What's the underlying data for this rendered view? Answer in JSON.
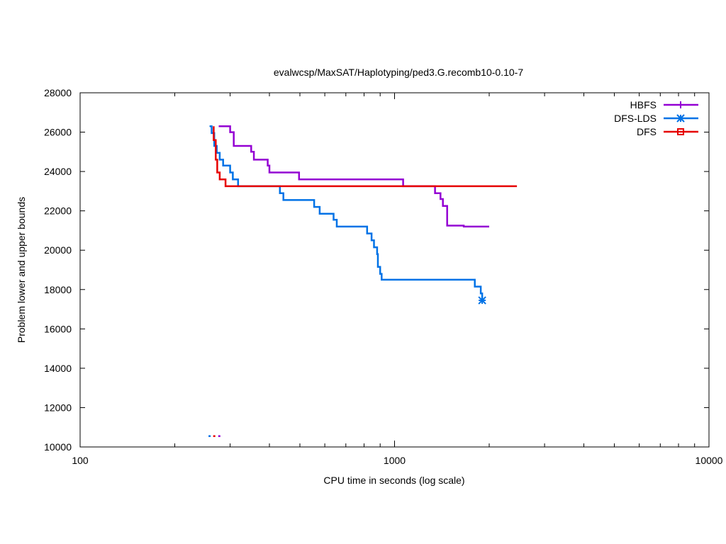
{
  "chart_data": {
    "type": "line",
    "title": "evalwcsp/MaxSAT/Haplotyping/ped3.G.recomb10-0.10-7",
    "xlabel": "CPU time in seconds (log scale)",
    "ylabel": "Problem lower and upper bounds",
    "xscale": "log",
    "xlim": [
      100,
      10000
    ],
    "ylim": [
      10000,
      28000
    ],
    "xticks": [
      100,
      1000,
      10000
    ],
    "xtick_labels": [
      "100",
      "1000",
      "10000"
    ],
    "yticks": [
      10000,
      12000,
      14000,
      16000,
      18000,
      20000,
      22000,
      24000,
      26000,
      28000
    ],
    "ytick_labels": [
      "10000",
      "12000",
      "14000",
      "16000",
      "18000",
      "20000",
      "22000",
      "24000",
      "26000",
      "28000"
    ],
    "grid": false,
    "legend_position": "top-right",
    "series": [
      {
        "name": "HBFS",
        "color": "#9400d3",
        "marker": "plus",
        "points": [
          [
            276,
            26300
          ],
          [
            300,
            26300
          ],
          [
            300,
            26000
          ],
          [
            308,
            26000
          ],
          [
            308,
            25300
          ],
          [
            350,
            25300
          ],
          [
            350,
            25000
          ],
          [
            357,
            25000
          ],
          [
            357,
            24600
          ],
          [
            395,
            24600
          ],
          [
            395,
            24300
          ],
          [
            400,
            24300
          ],
          [
            400,
            23950
          ],
          [
            497,
            23950
          ],
          [
            497,
            23600
          ],
          [
            1065,
            23600
          ],
          [
            1065,
            23250
          ],
          [
            1345,
            23250
          ],
          [
            1345,
            22900
          ],
          [
            1400,
            22900
          ],
          [
            1400,
            22600
          ],
          [
            1425,
            22600
          ],
          [
            1425,
            22250
          ],
          [
            1470,
            22250
          ],
          [
            1470,
            21250
          ],
          [
            1660,
            21250
          ],
          [
            1660,
            21200
          ],
          [
            2000,
            21200
          ]
        ],
        "lower_bound": [
          [
            275,
            10550
          ],
          [
            283,
            10550
          ]
        ]
      },
      {
        "name": "DFS-LDS",
        "color": "#0072e6",
        "marker": "star",
        "points": [
          [
            258,
            26300
          ],
          [
            262,
            26300
          ],
          [
            262,
            25950
          ],
          [
            267,
            25950
          ],
          [
            267,
            25300
          ],
          [
            272,
            25300
          ],
          [
            272,
            24950
          ],
          [
            278,
            24950
          ],
          [
            278,
            24600
          ],
          [
            285,
            24600
          ],
          [
            285,
            24300
          ],
          [
            300,
            24300
          ],
          [
            300,
            23950
          ],
          [
            306,
            23950
          ],
          [
            306,
            23600
          ],
          [
            318,
            23600
          ],
          [
            318,
            23250
          ],
          [
            432,
            23250
          ],
          [
            432,
            22900
          ],
          [
            443,
            22900
          ],
          [
            443,
            22550
          ],
          [
            555,
            22550
          ],
          [
            555,
            22200
          ],
          [
            578,
            22200
          ],
          [
            578,
            21850
          ],
          [
            640,
            21850
          ],
          [
            640,
            21550
          ],
          [
            655,
            21550
          ],
          [
            655,
            21200
          ],
          [
            818,
            21200
          ],
          [
            818,
            20850
          ],
          [
            845,
            20850
          ],
          [
            845,
            20500
          ],
          [
            860,
            20500
          ],
          [
            860,
            20150
          ],
          [
            880,
            20150
          ],
          [
            880,
            19800
          ],
          [
            885,
            19800
          ],
          [
            885,
            19150
          ],
          [
            900,
            19150
          ],
          [
            900,
            18800
          ],
          [
            910,
            18800
          ],
          [
            910,
            18500
          ],
          [
            1800,
            18500
          ],
          [
            1800,
            18150
          ],
          [
            1880,
            18150
          ],
          [
            1880,
            17800
          ],
          [
            1900,
            17800
          ],
          [
            1900,
            17500
          ]
        ],
        "end_marker": [
          1900,
          17450
        ],
        "lower_bound": [
          [
            256,
            10550
          ],
          [
            264,
            10550
          ]
        ]
      },
      {
        "name": "DFS",
        "color": "#e60000",
        "marker": "square",
        "points": [
          [
            266,
            26300
          ],
          [
            266,
            25600
          ],
          [
            270,
            25600
          ],
          [
            270,
            24600
          ],
          [
            273,
            24600
          ],
          [
            273,
            23950
          ],
          [
            278,
            23950
          ],
          [
            278,
            23600
          ],
          [
            290,
            23600
          ],
          [
            290,
            23250
          ],
          [
            2450,
            23250
          ]
        ],
        "lower_bound": [
          [
            265,
            10550
          ],
          [
            271,
            10550
          ]
        ]
      }
    ]
  }
}
